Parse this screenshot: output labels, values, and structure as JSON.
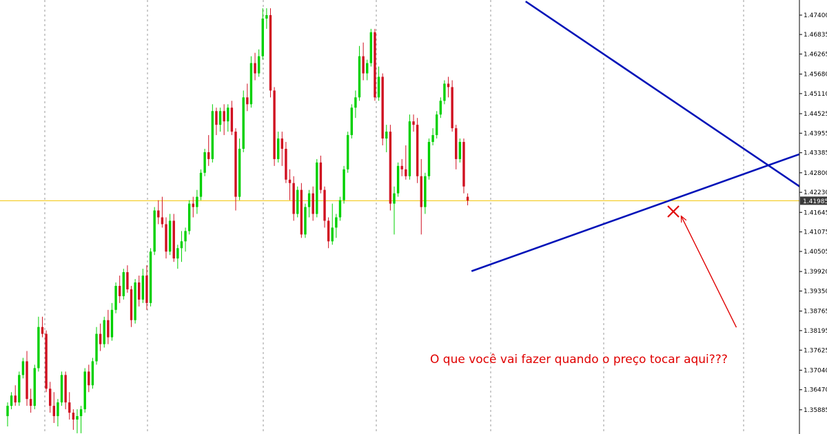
{
  "chart_data": {
    "type": "candlestick",
    "y_axis": {
      "position": "right",
      "ticks": [
        "1.47400",
        "1.46835",
        "1.46265",
        "1.45680",
        "1.45110",
        "1.44525",
        "1.43955",
        "1.43385",
        "1.42800",
        "1.42230",
        "1.41645",
        "1.41075",
        "1.40505",
        "1.39920",
        "1.39350",
        "1.38765",
        "1.38195",
        "1.37625",
        "1.37040",
        "1.36470",
        "1.35885"
      ],
      "ylim": [
        1.3552,
        1.476
      ]
    },
    "current_price": {
      "value": 1.41985,
      "label": "1.41985",
      "line_color": "#f2c200"
    },
    "grid": true,
    "colors": {
      "bull": "#00d000",
      "bear": "#d01020",
      "trendline": "#0012b8",
      "annotation": "#e00000",
      "price_line": "#f2c200"
    },
    "candles_ohlc": [
      [
        1.357,
        1.361,
        1.354,
        1.36
      ],
      [
        1.36,
        1.364,
        1.359,
        1.363
      ],
      [
        1.363,
        1.366,
        1.36,
        1.361
      ],
      [
        1.361,
        1.37,
        1.36,
        1.369
      ],
      [
        1.369,
        1.374,
        1.368,
        1.373
      ],
      [
        1.373,
        1.376,
        1.36,
        1.362
      ],
      [
        1.362,
        1.365,
        1.358,
        1.36
      ],
      [
        1.36,
        1.372,
        1.359,
        1.371
      ],
      [
        1.371,
        1.386,
        1.37,
        1.383
      ],
      [
        1.383,
        1.386,
        1.38,
        1.381
      ],
      [
        1.381,
        1.382,
        1.364,
        1.365
      ],
      [
        1.365,
        1.367,
        1.358,
        1.36
      ],
      [
        1.36,
        1.364,
        1.355,
        1.357
      ],
      [
        1.357,
        1.362,
        1.354,
        1.361
      ],
      [
        1.361,
        1.37,
        1.36,
        1.369
      ],
      [
        1.369,
        1.37,
        1.359,
        1.361
      ],
      [
        1.361,
        1.364,
        1.356,
        1.358
      ],
      [
        1.358,
        1.359,
        1.353,
        1.356
      ],
      [
        1.356,
        1.359,
        1.352,
        1.357
      ],
      [
        1.357,
        1.36,
        1.352,
        1.359
      ],
      [
        1.359,
        1.371,
        1.358,
        1.37
      ],
      [
        1.37,
        1.372,
        1.364,
        1.366
      ],
      [
        1.366,
        1.374,
        1.365,
        1.373
      ],
      [
        1.373,
        1.383,
        1.372,
        1.381
      ],
      [
        1.381,
        1.384,
        1.376,
        1.378
      ],
      [
        1.378,
        1.386,
        1.377,
        1.385
      ],
      [
        1.385,
        1.388,
        1.378,
        1.38
      ],
      [
        1.38,
        1.39,
        1.379,
        1.388
      ],
      [
        1.388,
        1.396,
        1.387,
        1.395
      ],
      [
        1.395,
        1.398,
        1.39,
        1.392
      ],
      [
        1.392,
        1.4,
        1.391,
        1.399
      ],
      [
        1.399,
        1.401,
        1.393,
        1.394
      ],
      [
        1.394,
        1.395,
        1.383,
        1.385
      ],
      [
        1.385,
        1.397,
        1.384,
        1.396
      ],
      [
        1.396,
        1.398,
        1.389,
        1.391
      ],
      [
        1.391,
        1.4,
        1.39,
        1.398
      ],
      [
        1.398,
        1.401,
        1.388,
        1.39
      ],
      [
        1.39,
        1.406,
        1.389,
        1.405
      ],
      [
        1.405,
        1.418,
        1.404,
        1.417
      ],
      [
        1.417,
        1.42,
        1.413,
        1.415
      ],
      [
        1.415,
        1.421,
        1.412,
        1.413
      ],
      [
        1.413,
        1.415,
        1.403,
        1.405
      ],
      [
        1.405,
        1.416,
        1.404,
        1.414
      ],
      [
        1.414,
        1.416,
        1.402,
        1.403
      ],
      [
        1.403,
        1.407,
        1.4,
        1.406
      ],
      [
        1.406,
        1.411,
        1.402,
        1.408
      ],
      [
        1.408,
        1.412,
        1.405,
        1.411
      ],
      [
        1.411,
        1.42,
        1.41,
        1.419
      ],
      [
        1.419,
        1.421,
        1.415,
        1.418
      ],
      [
        1.418,
        1.423,
        1.416,
        1.421
      ],
      [
        1.421,
        1.429,
        1.42,
        1.428
      ],
      [
        1.428,
        1.435,
        1.427,
        1.434
      ],
      [
        1.434,
        1.439,
        1.43,
        1.432
      ],
      [
        1.432,
        1.448,
        1.431,
        1.446
      ],
      [
        1.446,
        1.447,
        1.439,
        1.442
      ],
      [
        1.442,
        1.447,
        1.44,
        1.446
      ],
      [
        1.446,
        1.448,
        1.439,
        1.443
      ],
      [
        1.443,
        1.448,
        1.44,
        1.447
      ],
      [
        1.447,
        1.449,
        1.439,
        1.44
      ],
      [
        1.44,
        1.441,
        1.417,
        1.421
      ],
      [
        1.421,
        1.438,
        1.42,
        1.435
      ],
      [
        1.435,
        1.452,
        1.434,
        1.45
      ],
      [
        1.45,
        1.454,
        1.446,
        1.448
      ],
      [
        1.448,
        1.462,
        1.447,
        1.46
      ],
      [
        1.46,
        1.463,
        1.455,
        1.457
      ],
      [
        1.457,
        1.464,
        1.456,
        1.462
      ],
      [
        1.462,
        1.476,
        1.461,
        1.473
      ],
      [
        1.473,
        1.476,
        1.47,
        1.474
      ],
      [
        1.474,
        1.476,
        1.45,
        1.452
      ],
      [
        1.452,
        1.453,
        1.43,
        1.432
      ],
      [
        1.432,
        1.44,
        1.431,
        1.438
      ],
      [
        1.438,
        1.44,
        1.43,
        1.435
      ],
      [
        1.435,
        1.437,
        1.425,
        1.426
      ],
      [
        1.426,
        1.429,
        1.42,
        1.425
      ],
      [
        1.425,
        1.427,
        1.414,
        1.416
      ],
      [
        1.416,
        1.424,
        1.415,
        1.423
      ],
      [
        1.423,
        1.425,
        1.409,
        1.41
      ],
      [
        1.41,
        1.419,
        1.409,
        1.418
      ],
      [
        1.418,
        1.423,
        1.415,
        1.422
      ],
      [
        1.422,
        1.424,
        1.414,
        1.416
      ],
      [
        1.416,
        1.432,
        1.415,
        1.431
      ],
      [
        1.431,
        1.433,
        1.422,
        1.423
      ],
      [
        1.423,
        1.424,
        1.412,
        1.414
      ],
      [
        1.414,
        1.415,
        1.406,
        1.408
      ],
      [
        1.408,
        1.419,
        1.407,
        1.412
      ],
      [
        1.412,
        1.416,
        1.409,
        1.415
      ],
      [
        1.415,
        1.421,
        1.414,
        1.42
      ],
      [
        1.42,
        1.43,
        1.419,
        1.429
      ],
      [
        1.429,
        1.44,
        1.428,
        1.439
      ],
      [
        1.439,
        1.448,
        1.438,
        1.447
      ],
      [
        1.447,
        1.452,
        1.444,
        1.45
      ],
      [
        1.45,
        1.465,
        1.449,
        1.462
      ],
      [
        1.462,
        1.466,
        1.455,
        1.457
      ],
      [
        1.457,
        1.461,
        1.455,
        1.46
      ],
      [
        1.46,
        1.47,
        1.459,
        1.469
      ],
      [
        1.469,
        1.47,
        1.449,
        1.45
      ],
      [
        1.45,
        1.459,
        1.449,
        1.456
      ],
      [
        1.456,
        1.457,
        1.436,
        1.438
      ],
      [
        1.438,
        1.442,
        1.434,
        1.44
      ],
      [
        1.44,
        1.442,
        1.417,
        1.419
      ],
      [
        1.419,
        1.424,
        1.41,
        1.422
      ],
      [
        1.422,
        1.431,
        1.421,
        1.43
      ],
      [
        1.43,
        1.432,
        1.427,
        1.429
      ],
      [
        1.429,
        1.436,
        1.426,
        1.427
      ],
      [
        1.427,
        1.445,
        1.426,
        1.443
      ],
      [
        1.443,
        1.445,
        1.44,
        1.442
      ],
      [
        1.442,
        1.444,
        1.425,
        1.427
      ],
      [
        1.427,
        1.432,
        1.41,
        1.418
      ],
      [
        1.418,
        1.428,
        1.416,
        1.427
      ],
      [
        1.427,
        1.438,
        1.426,
        1.437
      ],
      [
        1.437,
        1.441,
        1.436,
        1.439
      ],
      [
        1.439,
        1.446,
        1.438,
        1.445
      ],
      [
        1.445,
        1.45,
        1.444,
        1.449
      ],
      [
        1.449,
        1.455,
        1.448,
        1.454
      ],
      [
        1.454,
        1.456,
        1.45,
        1.453
      ],
      [
        1.453,
        1.455,
        1.44,
        1.441
      ],
      [
        1.441,
        1.442,
        1.429,
        1.432
      ],
      [
        1.432,
        1.438,
        1.431,
        1.437
      ],
      [
        1.437,
        1.438,
        1.422,
        1.424
      ],
      [
        1.421,
        1.422,
        1.4185,
        1.4199
      ]
    ],
    "trendlines": [
      {
        "name": "resistance",
        "from": [
          134,
          1.478
        ],
        "to": [
          205,
          1.4239
        ]
      },
      {
        "name": "support",
        "from": [
          120,
          1.3993
        ],
        "to": [
          205,
          1.4335
        ]
      }
    ],
    "markers": [
      {
        "type": "cross",
        "at": [
          172.2,
          1.4167
        ]
      }
    ],
    "annotation": {
      "text": "O que você vai fazer quando o preço tocar aqui???",
      "arrow_tail": [
        188.5,
        1.3829
      ],
      "arrow_head": [
        174.3,
        1.4152
      ]
    }
  }
}
